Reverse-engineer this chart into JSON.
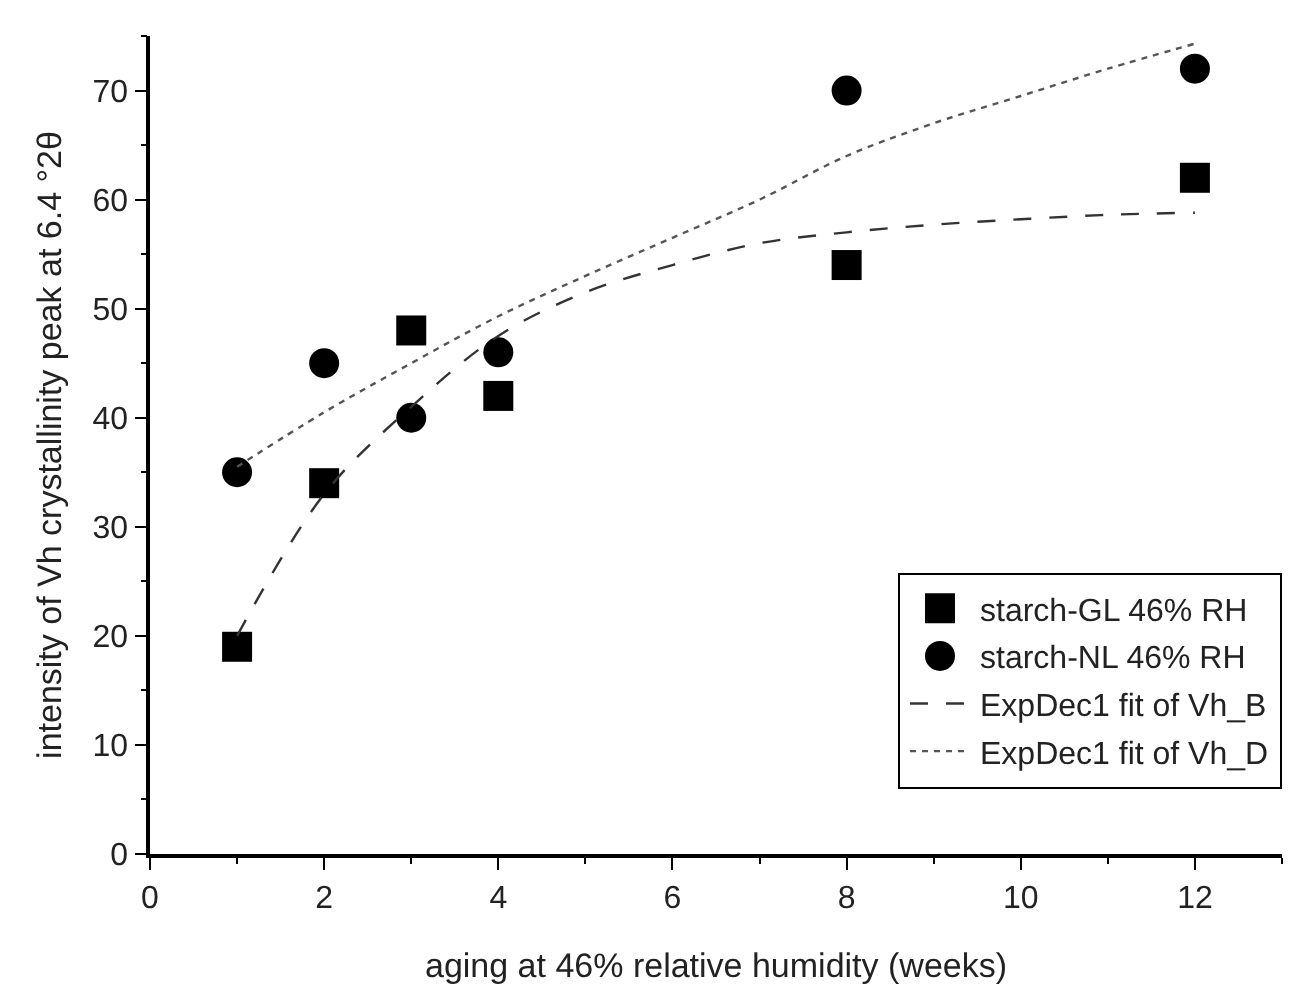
{
  "chart_data": {
    "type": "scatter",
    "xlabel": "aging at 46% relative humidity (weeks)",
    "ylabel": "intensity of Vh crystallinity peak at 6.4 °2θ",
    "x": [
      1,
      2,
      3,
      4,
      8,
      12
    ],
    "series": [
      {
        "name": "starch-GL 46% RH",
        "color": "#000000",
        "marker": "square",
        "values": [
          19,
          34,
          48,
          42,
          54,
          62
        ]
      },
      {
        "name": "starch-NL 46% RH",
        "color": "#000000",
        "marker": "circle",
        "values": [
          35,
          45,
          40,
          46,
          70,
          72
        ]
      },
      {
        "name": "ExpDec1 fit of Vh_B",
        "type": "line",
        "color": "#333333",
        "line_style": "dashed",
        "x": [
          1,
          2,
          3,
          4,
          5,
          6,
          7,
          8,
          9,
          10,
          11,
          12
        ],
        "values": [
          20,
          33,
          41,
          47.5,
          51.5,
          54,
          56,
          57,
          57.7,
          58.2,
          58.6,
          58.8
        ]
      },
      {
        "name": "ExpDec1 fit of Vh_D",
        "type": "line",
        "color": "#555555",
        "line_style": "dotted",
        "x": [
          1,
          2,
          3,
          4,
          5,
          6,
          7,
          8,
          9,
          10,
          11,
          12
        ],
        "values": [
          35.5,
          40.5,
          45,
          49.3,
          53,
          56.5,
          60,
          64,
          67,
          69.5,
          72,
          74.3
        ]
      }
    ],
    "xlim": [
      0,
      13
    ],
    "xticks": [
      0,
      2,
      4,
      6,
      8,
      10,
      12
    ],
    "ylim": [
      0,
      75
    ],
    "yticks": [
      0,
      10,
      20,
      30,
      40,
      50,
      60,
      70
    ],
    "grid": false,
    "legend": "bottom right"
  }
}
